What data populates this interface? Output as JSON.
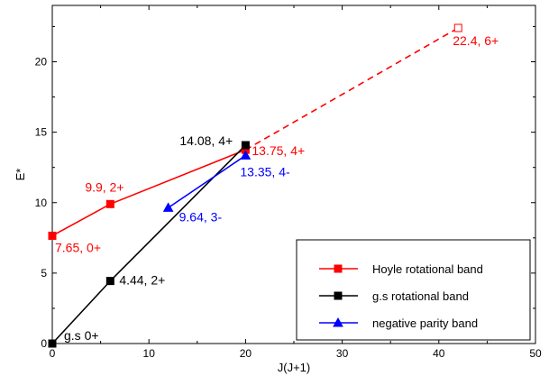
{
  "chart_data": {
    "type": "line",
    "xlabel": "J(J+1)",
    "ylabel": "E*",
    "xlim": [
      0,
      50
    ],
    "ylim": [
      0,
      24
    ],
    "xticks": [
      0,
      10,
      20,
      30,
      40,
      50
    ],
    "yticks": [
      0,
      5,
      10,
      15,
      20
    ],
    "grid": false,
    "legend_position": "bottom-right",
    "series": [
      {
        "name": "Hoyle rotational band",
        "color": "#ff0000",
        "marker": "square",
        "x": [
          0,
          6,
          20
        ],
        "y": [
          7.65,
          9.9,
          13.75
        ],
        "extrapolation": {
          "x": [
            20,
            42
          ],
          "y": [
            13.75,
            22.4
          ],
          "style": "dashed",
          "end_marker": "open-square"
        }
      },
      {
        "name": "g.s rotational band",
        "color": "#000000",
        "marker": "square",
        "x": [
          0,
          6,
          20
        ],
        "y": [
          0,
          4.44,
          14.08
        ]
      },
      {
        "name": "negative parity band",
        "color": "#0000ff",
        "marker": "triangle",
        "x": [
          12,
          20
        ],
        "y": [
          9.64,
          13.35
        ]
      }
    ],
    "annotations": [
      {
        "text": "22.4, 6+",
        "x": 42,
        "y": 22.4,
        "color": "#ff0000"
      },
      {
        "text": "14.08, 4+",
        "x": 20,
        "y": 14.08,
        "color": "#000000"
      },
      {
        "text": "13.75, 4+",
        "x": 20,
        "y": 13.75,
        "color": "#ff0000"
      },
      {
        "text": "9.9, 2+",
        "x": 6,
        "y": 9.9,
        "color": "#ff0000"
      },
      {
        "text": "13.35, 4-",
        "x": 20,
        "y": 13.35,
        "color": "#0000ff"
      },
      {
        "text": "9.64, 3-",
        "x": 12,
        "y": 9.64,
        "color": "#0000ff"
      },
      {
        "text": "7.65, 0+",
        "x": 0,
        "y": 7.65,
        "color": "#ff0000"
      },
      {
        "text": "4.44, 2+",
        "x": 6,
        "y": 4.44,
        "color": "#000000"
      },
      {
        "text": "g.s 0+",
        "x": 0,
        "y": 0,
        "color": "#000000"
      }
    ]
  }
}
